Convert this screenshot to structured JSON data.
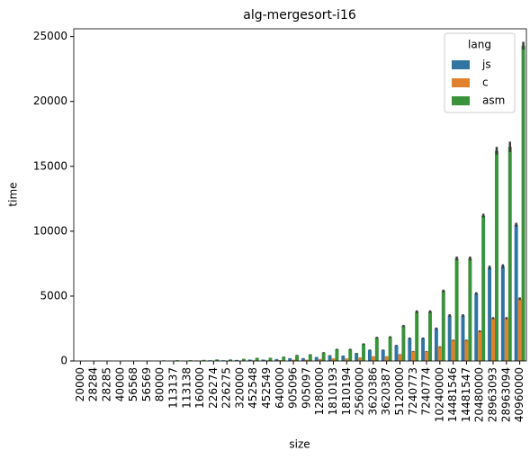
{
  "chart_data": {
    "type": "bar",
    "title": "alg-mergesort-i16",
    "x_label": "size",
    "y_label": "time",
    "legend_title": "lang",
    "legend_position": "upper right",
    "categories": [
      "20000",
      "28284",
      "28285",
      "40000",
      "56568",
      "56569",
      "80000",
      "113137",
      "113138",
      "160000",
      "226274",
      "226275",
      "320000",
      "452548",
      "452549",
      "640000",
      "905096",
      "905097",
      "1280000",
      "1810193",
      "1810194",
      "2560000",
      "3620386",
      "3620387",
      "5120000",
      "7240773",
      "7240774",
      "10240000",
      "14481546",
      "14481547",
      "20480000",
      "28963093",
      "28963094",
      "40960000"
    ],
    "series": [
      {
        "name": "js",
        "color": "#3274a1",
        "values": [
          5,
          7,
          7,
          10,
          14,
          14,
          20,
          28,
          28,
          40,
          55,
          55,
          80,
          110,
          110,
          150,
          210,
          210,
          300,
          430,
          400,
          600,
          850,
          850,
          1200,
          1750,
          1750,
          2500,
          3500,
          3500,
          5200,
          7200,
          7300,
          10500
        ],
        "errors": [
          0,
          0,
          0,
          0,
          0,
          0,
          0,
          0,
          0,
          0,
          0,
          0,
          0,
          0,
          0,
          0,
          10,
          10,
          10,
          20,
          20,
          20,
          30,
          30,
          40,
          60,
          60,
          80,
          100,
          100,
          100,
          150,
          150,
          150
        ]
      },
      {
        "name": "c",
        "color": "#e1812c",
        "values": [
          2,
          3,
          3,
          4,
          6,
          6,
          9,
          12,
          12,
          18,
          25,
          25,
          35,
          50,
          50,
          70,
          100,
          100,
          140,
          180,
          180,
          250,
          350,
          350,
          500,
          750,
          750,
          1100,
          1600,
          1600,
          2300,
          3300,
          3300,
          4800
        ],
        "errors": [
          0,
          0,
          0,
          0,
          0,
          0,
          0,
          0,
          0,
          0,
          0,
          0,
          0,
          0,
          0,
          0,
          0,
          0,
          5,
          10,
          10,
          10,
          10,
          10,
          20,
          20,
          20,
          30,
          40,
          40,
          60,
          80,
          80,
          100
        ]
      },
      {
        "name": "asm",
        "color": "#3a923a",
        "values": [
          10,
          15,
          15,
          22,
          30,
          30,
          45,
          60,
          60,
          85,
          120,
          120,
          170,
          240,
          240,
          330,
          450,
          500,
          650,
          900,
          900,
          1300,
          1800,
          1850,
          2700,
          3800,
          3800,
          5400,
          7900,
          7900,
          11200,
          16200,
          16500,
          24300
        ],
        "errors": [
          0,
          0,
          0,
          0,
          0,
          0,
          0,
          0,
          0,
          0,
          0,
          0,
          0,
          10,
          10,
          10,
          20,
          20,
          30,
          40,
          40,
          60,
          60,
          60,
          80,
          100,
          100,
          100,
          150,
          150,
          150,
          300,
          400,
          300
        ]
      }
    ],
    "ylim": [
      0,
      25600
    ],
    "yticks": [
      0,
      5000,
      10000,
      15000,
      20000,
      25000
    ],
    "grid": false
  }
}
